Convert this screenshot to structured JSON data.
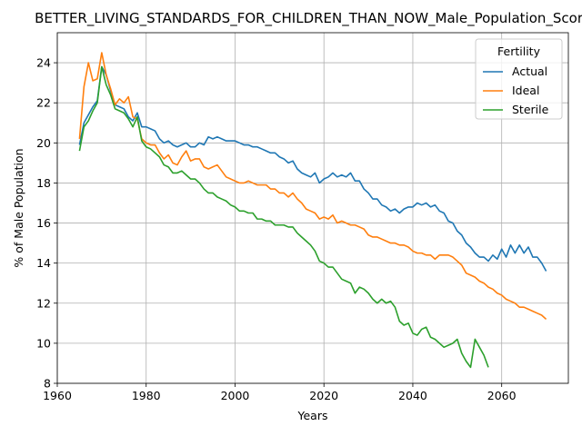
{
  "chart_data": {
    "type": "line",
    "title": "BETTER_LIVING_STANDARDS_FOR_CHILDREN_THAN_NOW_Male_Population_Score",
    "xlabel": "Years",
    "ylabel": "% of Male Population",
    "xlim": [
      1960,
      2075
    ],
    "ylim": [
      8,
      25.5
    ],
    "xticks": [
      1960,
      1980,
      2000,
      2020,
      2040,
      2060
    ],
    "yticks": [
      8,
      10,
      12,
      14,
      16,
      18,
      20,
      22,
      24
    ],
    "grid": true,
    "legend": {
      "title": "Fertility",
      "position": "top-right"
    },
    "series": [
      {
        "name": "Actual",
        "color": "#1f77b4",
        "points": [
          [
            1965,
            19.9
          ],
          [
            1966,
            21.0
          ],
          [
            1967,
            21.4
          ],
          [
            1968,
            21.8
          ],
          [
            1969,
            22.1
          ],
          [
            1970,
            23.8
          ],
          [
            1971,
            23.4
          ],
          [
            1972,
            22.6
          ],
          [
            1973,
            21.9
          ],
          [
            1974,
            21.8
          ],
          [
            1975,
            21.7
          ],
          [
            1976,
            21.3
          ],
          [
            1977,
            21.1
          ],
          [
            1978,
            21.5
          ],
          [
            1979,
            20.8
          ],
          [
            1980,
            20.8
          ],
          [
            1981,
            20.7
          ],
          [
            1982,
            20.6
          ],
          [
            1983,
            20.2
          ],
          [
            1984,
            20.0
          ],
          [
            1985,
            20.1
          ],
          [
            1986,
            19.9
          ],
          [
            1987,
            19.8
          ],
          [
            1988,
            19.9
          ],
          [
            1989,
            20.0
          ],
          [
            1990,
            19.8
          ],
          [
            1991,
            19.8
          ],
          [
            1992,
            20.0
          ],
          [
            1993,
            19.9
          ],
          [
            1994,
            20.3
          ],
          [
            1995,
            20.2
          ],
          [
            1996,
            20.3
          ],
          [
            1997,
            20.2
          ],
          [
            1998,
            20.1
          ],
          [
            1999,
            20.1
          ],
          [
            2000,
            20.1
          ],
          [
            2001,
            20.0
          ],
          [
            2002,
            19.9
          ],
          [
            2003,
            19.9
          ],
          [
            2004,
            19.8
          ],
          [
            2005,
            19.8
          ],
          [
            2006,
            19.7
          ],
          [
            2007,
            19.6
          ],
          [
            2008,
            19.5
          ],
          [
            2009,
            19.5
          ],
          [
            2010,
            19.3
          ],
          [
            2011,
            19.2
          ],
          [
            2012,
            19.0
          ],
          [
            2013,
            19.1
          ],
          [
            2014,
            18.7
          ],
          [
            2015,
            18.5
          ],
          [
            2016,
            18.4
          ],
          [
            2017,
            18.3
          ],
          [
            2018,
            18.5
          ],
          [
            2019,
            18.0
          ],
          [
            2020,
            18.2
          ],
          [
            2021,
            18.3
          ],
          [
            2022,
            18.5
          ],
          [
            2023,
            18.3
          ],
          [
            2024,
            18.4
          ],
          [
            2025,
            18.3
          ],
          [
            2026,
            18.5
          ],
          [
            2027,
            18.1
          ],
          [
            2028,
            18.1
          ],
          [
            2029,
            17.7
          ],
          [
            2030,
            17.5
          ],
          [
            2031,
            17.2
          ],
          [
            2032,
            17.2
          ],
          [
            2033,
            16.9
          ],
          [
            2034,
            16.8
          ],
          [
            2035,
            16.6
          ],
          [
            2036,
            16.7
          ],
          [
            2037,
            16.5
          ],
          [
            2038,
            16.7
          ],
          [
            2039,
            16.8
          ],
          [
            2040,
            16.8
          ],
          [
            2041,
            17.0
          ],
          [
            2042,
            16.9
          ],
          [
            2043,
            17.0
          ],
          [
            2044,
            16.8
          ],
          [
            2045,
            16.9
          ],
          [
            2046,
            16.6
          ],
          [
            2047,
            16.5
          ],
          [
            2048,
            16.1
          ],
          [
            2049,
            16.0
          ],
          [
            2050,
            15.6
          ],
          [
            2051,
            15.4
          ],
          [
            2052,
            15.0
          ],
          [
            2053,
            14.8
          ],
          [
            2054,
            14.5
          ],
          [
            2055,
            14.3
          ],
          [
            2056,
            14.3
          ],
          [
            2057,
            14.1
          ],
          [
            2058,
            14.4
          ],
          [
            2059,
            14.2
          ],
          [
            2060,
            14.7
          ],
          [
            2061,
            14.3
          ],
          [
            2062,
            14.9
          ],
          [
            2063,
            14.5
          ],
          [
            2064,
            14.9
          ],
          [
            2065,
            14.5
          ],
          [
            2066,
            14.8
          ],
          [
            2067,
            14.3
          ],
          [
            2068,
            14.3
          ],
          [
            2069,
            14.0
          ],
          [
            2070,
            13.6
          ]
        ]
      },
      {
        "name": "Ideal",
        "color": "#ff7f0e",
        "points": [
          [
            1965,
            20.2
          ],
          [
            1966,
            22.8
          ],
          [
            1967,
            24.0
          ],
          [
            1968,
            23.1
          ],
          [
            1969,
            23.2
          ],
          [
            1970,
            24.5
          ],
          [
            1971,
            23.4
          ],
          [
            1972,
            22.7
          ],
          [
            1973,
            21.9
          ],
          [
            1974,
            22.2
          ],
          [
            1975,
            22.0
          ],
          [
            1976,
            22.3
          ],
          [
            1977,
            21.3
          ],
          [
            1978,
            21.2
          ],
          [
            1979,
            20.2
          ],
          [
            1980,
            20.0
          ],
          [
            1981,
            19.9
          ],
          [
            1982,
            19.9
          ],
          [
            1983,
            19.5
          ],
          [
            1984,
            19.2
          ],
          [
            1985,
            19.4
          ],
          [
            1986,
            19.0
          ],
          [
            1987,
            18.9
          ],
          [
            1988,
            19.3
          ],
          [
            1989,
            19.6
          ],
          [
            1990,
            19.1
          ],
          [
            1991,
            19.2
          ],
          [
            1992,
            19.2
          ],
          [
            1993,
            18.8
          ],
          [
            1994,
            18.7
          ],
          [
            1995,
            18.8
          ],
          [
            1996,
            18.9
          ],
          [
            1997,
            18.6
          ],
          [
            1998,
            18.3
          ],
          [
            1999,
            18.2
          ],
          [
            2000,
            18.1
          ],
          [
            2001,
            18.0
          ],
          [
            2002,
            18.0
          ],
          [
            2003,
            18.1
          ],
          [
            2004,
            18.0
          ],
          [
            2005,
            17.9
          ],
          [
            2006,
            17.9
          ],
          [
            2007,
            17.9
          ],
          [
            2008,
            17.7
          ],
          [
            2009,
            17.7
          ],
          [
            2010,
            17.5
          ],
          [
            2011,
            17.5
          ],
          [
            2012,
            17.3
          ],
          [
            2013,
            17.5
          ],
          [
            2014,
            17.2
          ],
          [
            2015,
            17.0
          ],
          [
            2016,
            16.7
          ],
          [
            2017,
            16.6
          ],
          [
            2018,
            16.5
          ],
          [
            2019,
            16.2
          ],
          [
            2020,
            16.3
          ],
          [
            2021,
            16.2
          ],
          [
            2022,
            16.4
          ],
          [
            2023,
            16.0
          ],
          [
            2024,
            16.1
          ],
          [
            2025,
            16.0
          ],
          [
            2026,
            15.9
          ],
          [
            2027,
            15.9
          ],
          [
            2028,
            15.8
          ],
          [
            2029,
            15.7
          ],
          [
            2030,
            15.4
          ],
          [
            2031,
            15.3
          ],
          [
            2032,
            15.3
          ],
          [
            2033,
            15.2
          ],
          [
            2034,
            15.1
          ],
          [
            2035,
            15.0
          ],
          [
            2036,
            15.0
          ],
          [
            2037,
            14.9
          ],
          [
            2038,
            14.9
          ],
          [
            2039,
            14.8
          ],
          [
            2040,
            14.6
          ],
          [
            2041,
            14.5
          ],
          [
            2042,
            14.5
          ],
          [
            2043,
            14.4
          ],
          [
            2044,
            14.4
          ],
          [
            2045,
            14.2
          ],
          [
            2046,
            14.4
          ],
          [
            2047,
            14.4
          ],
          [
            2048,
            14.4
          ],
          [
            2049,
            14.3
          ],
          [
            2050,
            14.1
          ],
          [
            2051,
            13.9
          ],
          [
            2052,
            13.5
          ],
          [
            2053,
            13.4
          ],
          [
            2054,
            13.3
          ],
          [
            2055,
            13.1
          ],
          [
            2056,
            13.0
          ],
          [
            2057,
            12.8
          ],
          [
            2058,
            12.7
          ],
          [
            2059,
            12.5
          ],
          [
            2060,
            12.4
          ],
          [
            2061,
            12.2
          ],
          [
            2062,
            12.1
          ],
          [
            2063,
            12.0
          ],
          [
            2064,
            11.8
          ],
          [
            2065,
            11.8
          ],
          [
            2066,
            11.7
          ],
          [
            2067,
            11.6
          ],
          [
            2068,
            11.5
          ],
          [
            2069,
            11.4
          ],
          [
            2070,
            11.2
          ]
        ]
      },
      {
        "name": "Sterile",
        "color": "#2ca02c",
        "points": [
          [
            1965,
            19.6
          ],
          [
            1966,
            20.8
          ],
          [
            1967,
            21.1
          ],
          [
            1968,
            21.6
          ],
          [
            1969,
            22.0
          ],
          [
            1970,
            23.8
          ],
          [
            1971,
            22.9
          ],
          [
            1972,
            22.4
          ],
          [
            1973,
            21.7
          ],
          [
            1974,
            21.6
          ],
          [
            1975,
            21.5
          ],
          [
            1976,
            21.2
          ],
          [
            1977,
            20.8
          ],
          [
            1978,
            21.3
          ],
          [
            1979,
            20.1
          ],
          [
            1980,
            19.8
          ],
          [
            1981,
            19.7
          ],
          [
            1982,
            19.5
          ],
          [
            1983,
            19.3
          ],
          [
            1984,
            18.9
          ],
          [
            1985,
            18.8
          ],
          [
            1986,
            18.5
          ],
          [
            1987,
            18.5
          ],
          [
            1988,
            18.6
          ],
          [
            1989,
            18.4
          ],
          [
            1990,
            18.2
          ],
          [
            1991,
            18.2
          ],
          [
            1992,
            18.0
          ],
          [
            1993,
            17.7
          ],
          [
            1994,
            17.5
          ],
          [
            1995,
            17.5
          ],
          [
            1996,
            17.3
          ],
          [
            1997,
            17.2
          ],
          [
            1998,
            17.1
          ],
          [
            1999,
            16.9
          ],
          [
            2000,
            16.8
          ],
          [
            2001,
            16.6
          ],
          [
            2002,
            16.6
          ],
          [
            2003,
            16.5
          ],
          [
            2004,
            16.5
          ],
          [
            2005,
            16.2
          ],
          [
            2006,
            16.2
          ],
          [
            2007,
            16.1
          ],
          [
            2008,
            16.1
          ],
          [
            2009,
            15.9
          ],
          [
            2010,
            15.9
          ],
          [
            2011,
            15.9
          ],
          [
            2012,
            15.8
          ],
          [
            2013,
            15.8
          ],
          [
            2014,
            15.5
          ],
          [
            2015,
            15.3
          ],
          [
            2016,
            15.1
          ],
          [
            2017,
            14.9
          ],
          [
            2018,
            14.6
          ],
          [
            2019,
            14.1
          ],
          [
            2020,
            14.0
          ],
          [
            2021,
            13.8
          ],
          [
            2022,
            13.8
          ],
          [
            2023,
            13.5
          ],
          [
            2024,
            13.2
          ],
          [
            2025,
            13.1
          ],
          [
            2026,
            13.0
          ],
          [
            2027,
            12.5
          ],
          [
            2028,
            12.8
          ],
          [
            2029,
            12.7
          ],
          [
            2030,
            12.5
          ],
          [
            2031,
            12.2
          ],
          [
            2032,
            12.0
          ],
          [
            2033,
            12.2
          ],
          [
            2034,
            12.0
          ],
          [
            2035,
            12.1
          ],
          [
            2036,
            11.8
          ],
          [
            2037,
            11.1
          ],
          [
            2038,
            10.9
          ],
          [
            2039,
            11.0
          ],
          [
            2040,
            10.5
          ],
          [
            2041,
            10.4
          ],
          [
            2042,
            10.7
          ],
          [
            2043,
            10.8
          ],
          [
            2044,
            10.3
          ],
          [
            2045,
            10.2
          ],
          [
            2046,
            10.0
          ],
          [
            2047,
            9.8
          ],
          [
            2048,
            9.9
          ],
          [
            2049,
            10.0
          ],
          [
            2050,
            10.2
          ],
          [
            2051,
            9.5
          ],
          [
            2052,
            9.1
          ],
          [
            2053,
            8.8
          ],
          [
            2054,
            10.2
          ],
          [
            2055,
            9.8
          ],
          [
            2056,
            9.4
          ],
          [
            2057,
            8.8
          ]
        ]
      }
    ]
  }
}
